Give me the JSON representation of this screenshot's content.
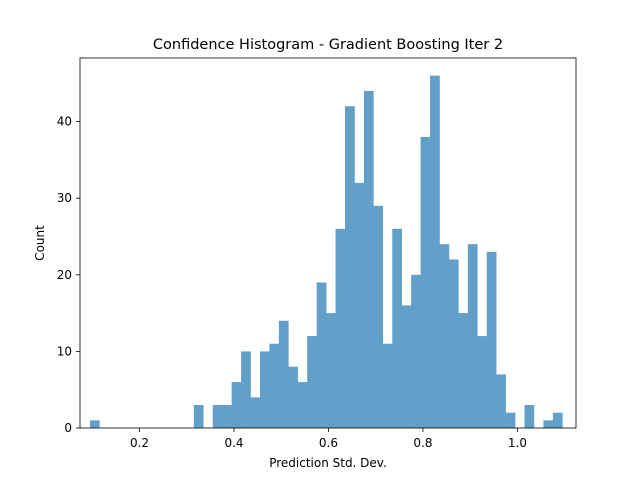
{
  "chart_data": {
    "type": "bar",
    "title": "Confidence Histogram - Gradient Boosting Iter 2",
    "xlabel": "Prediction Std. Dev.",
    "ylabel": "Count",
    "xlim": [
      0.074,
      1.124
    ],
    "ylim": [
      0,
      48.3
    ],
    "x_ticks": [
      0.2,
      0.4,
      0.6,
      0.8,
      1.0
    ],
    "x_tick_labels": [
      "0.2",
      "0.4",
      "0.6",
      "0.8",
      "1.0"
    ],
    "y_ticks": [
      0,
      10,
      20,
      30,
      40
    ],
    "y_tick_labels": [
      "0",
      "10",
      "20",
      "30",
      "40"
    ],
    "bar_color": "#62a0ca",
    "grid": false,
    "bins_start": 0.095,
    "bin_width": 0.02,
    "values": [
      1,
      0,
      0,
      0,
      0,
      0,
      0,
      0,
      0,
      0,
      0,
      3,
      0,
      3,
      3,
      6,
      10,
      4,
      10,
      11,
      14,
      8,
      6,
      12,
      19,
      15,
      26,
      42,
      32,
      44,
      29,
      11,
      26,
      16,
      20,
      38,
      46,
      24,
      22,
      15,
      24,
      12,
      23,
      7,
      2,
      0,
      3,
      0,
      1,
      2
    ]
  }
}
